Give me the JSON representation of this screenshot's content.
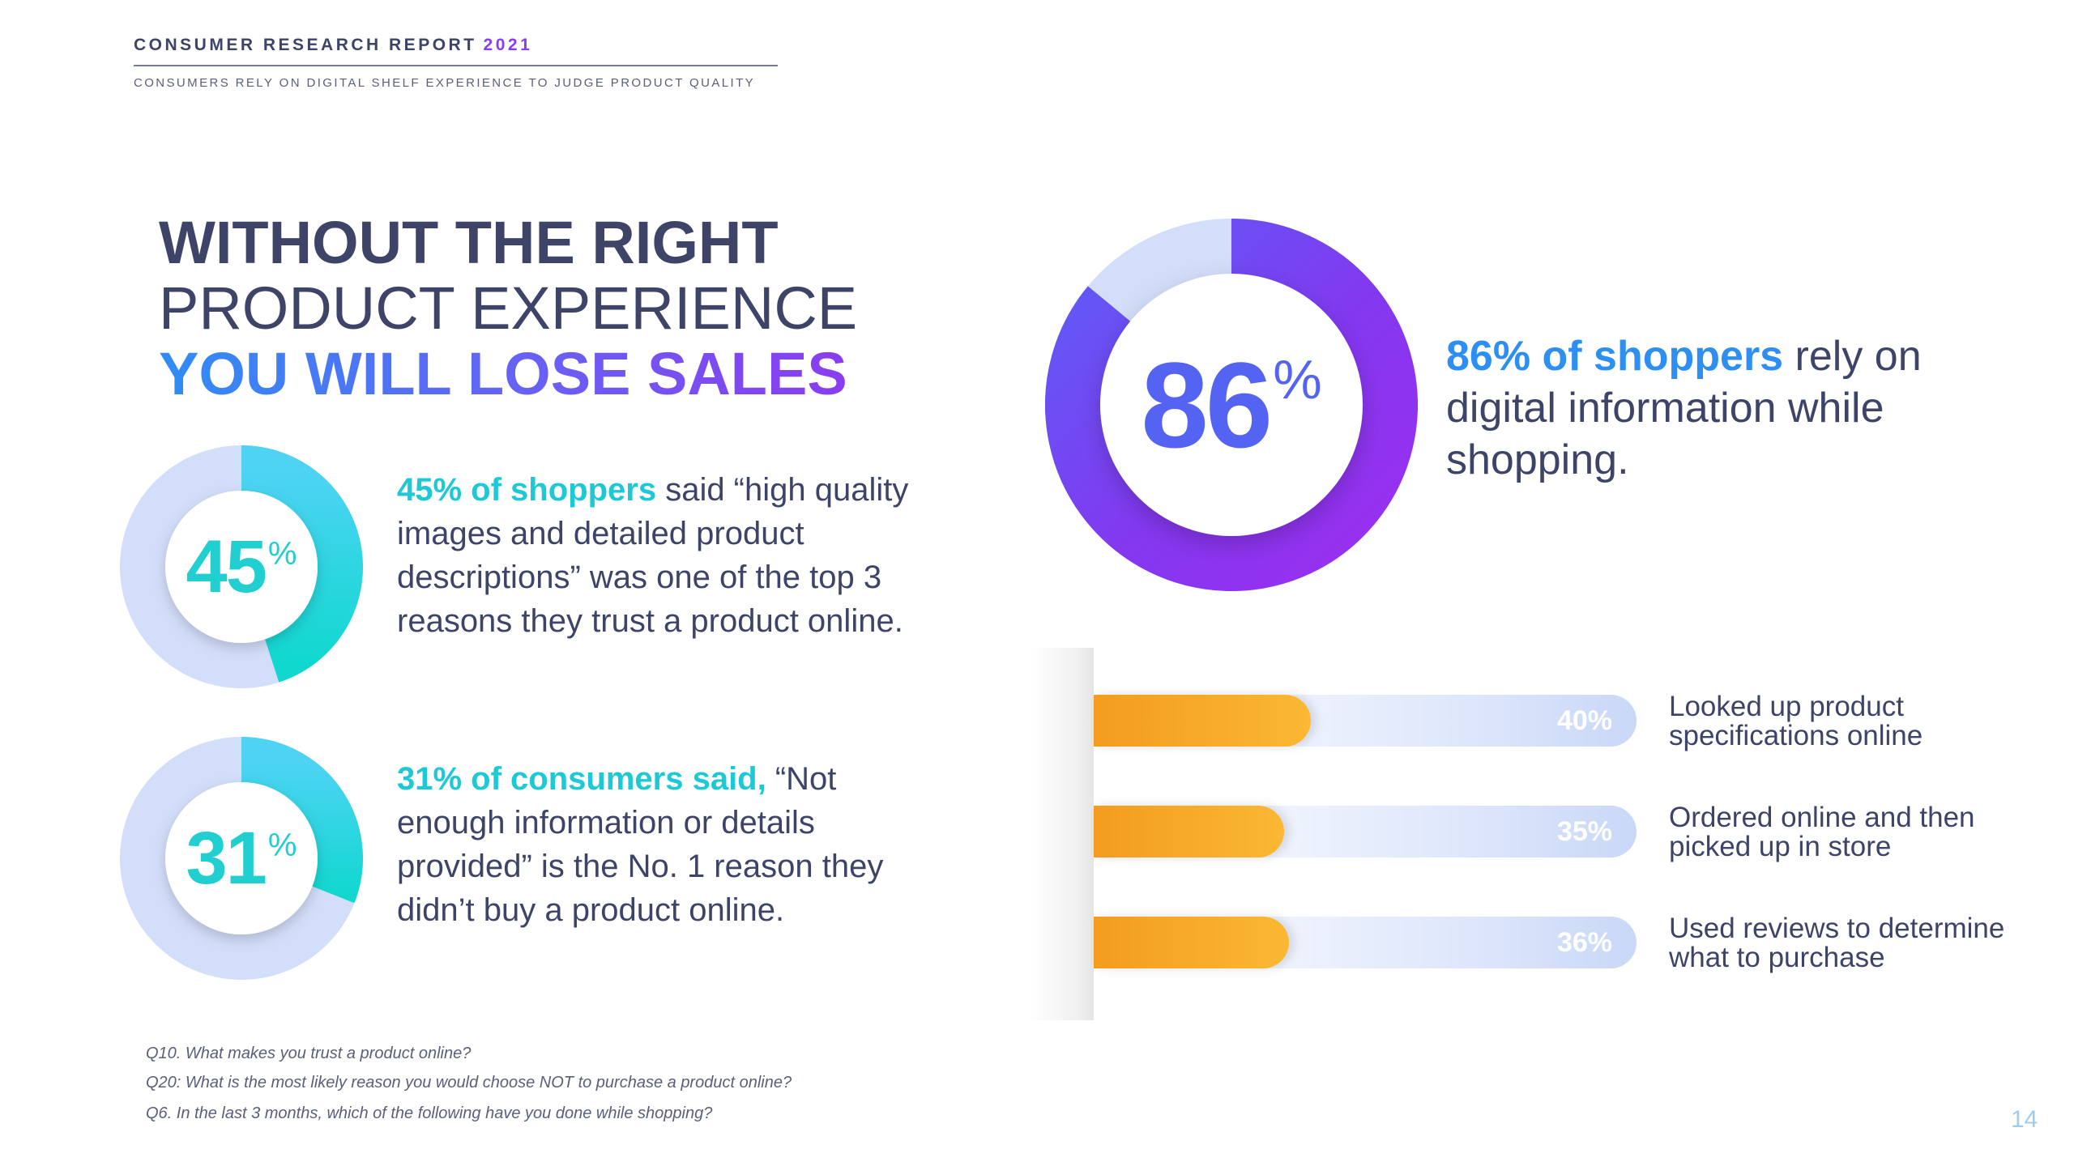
{
  "header": {
    "title": "CONSUMER RESEARCH REPORT",
    "year": "2021",
    "subtitle": "CONSUMERS RELY ON DIGITAL SHELF EXPERIENCE TO JUDGE PRODUCT QUALITY"
  },
  "headline": {
    "line1": "WITHOUT THE RIGHT",
    "line2": "PRODUCT EXPERIENCE",
    "line3": "YOU WILL LOSE SALES"
  },
  "stats": [
    {
      "value": "45",
      "unit": "%",
      "highlight": "45% of shoppers",
      "text": " said “high quality images and detailed product descriptions” was one of the top 3 reasons they trust a product online."
    },
    {
      "value": "31",
      "unit": "%",
      "highlight": "31% of consumers said,",
      "text": " “Not enough information or details provided” is the No. 1 reason they didn’t buy a product online."
    }
  ],
  "main_stat": {
    "value": "86",
    "unit": "%",
    "highlight": "86% of shoppers",
    "text": " rely on digital information while shopping."
  },
  "chart_data": [
    {
      "type": "pie",
      "title": "45%",
      "series": [
        {
          "name": "trust",
          "values": [
            45,
            55
          ]
        }
      ]
    },
    {
      "type": "pie",
      "title": "31%",
      "series": [
        {
          "name": "did not buy",
          "values": [
            31,
            69
          ]
        }
      ]
    },
    {
      "type": "pie",
      "title": "86%",
      "series": [
        {
          "name": "rely on digital",
          "values": [
            86,
            14
          ]
        }
      ]
    },
    {
      "type": "bar",
      "orientation": "horizontal",
      "categories": [
        "Looked up product specifications online",
        "Ordered online and then picked up in store",
        "Used reviews to determine what to purchase"
      ],
      "values": [
        40,
        35,
        36
      ],
      "value_labels": [
        "40%",
        "35%",
        "36%"
      ],
      "xlim": [
        0,
        100
      ]
    }
  ],
  "bars": [
    {
      "value": "40%",
      "label": "Looked up product specifications online"
    },
    {
      "value": "35%",
      "label": "Ordered online and then picked up in store"
    },
    {
      "value": "36%",
      "label": "Used reviews to determine what to purchase"
    }
  ],
  "footnotes": [
    "Q10. What makes you trust a product online?",
    "Q20: What is the most likely reason you would choose NOT to purchase a product online?",
    "Q6. In the last 3 months, which of the following have you done while shopping?"
  ],
  "page_number": "14",
  "colors": {
    "teal": "#1dc9d4",
    "blue": "#2d8ff2",
    "purple": "#8a3cf0",
    "orange": "#f39c1e",
    "track": "#d3defa",
    "navy": "#3d4468"
  }
}
